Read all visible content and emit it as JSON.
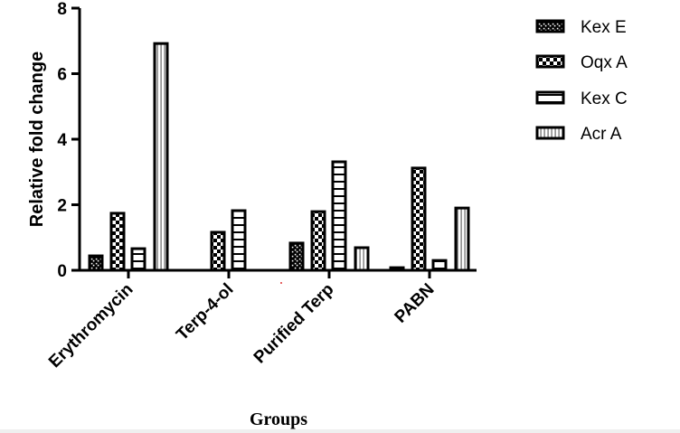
{
  "chart_data": {
    "type": "bar",
    "title": "",
    "xlabel": "Groups",
    "ylabel": "Relative fold change",
    "ylim": [
      0,
      8
    ],
    "yticks": [
      0,
      2,
      4,
      6,
      8
    ],
    "grid": false,
    "legend_position": "right-top",
    "categories": [
      "Erythromycin",
      "Terp-4-ol",
      "Purified Terp",
      "PABN"
    ],
    "series": [
      {
        "name": "Kex E",
        "pattern": "small-checker",
        "values": [
          0.44,
          0,
          0.83,
          0.08
        ]
      },
      {
        "name": "Oqx A",
        "pattern": "checker",
        "values": [
          1.74,
          1.16,
          1.79,
          3.12
        ]
      },
      {
        "name": "Kex C",
        "pattern": "horizontal-stripes",
        "values": [
          0.66,
          1.82,
          3.31,
          0.3
        ]
      },
      {
        "name": "Acr A",
        "pattern": "vertical-stripe",
        "values": [
          6.92,
          0,
          0.69,
          1.9
        ]
      }
    ]
  },
  "colors": {
    "ink": "#000000",
    "background": "#ffffff",
    "strip": "#efefef"
  }
}
